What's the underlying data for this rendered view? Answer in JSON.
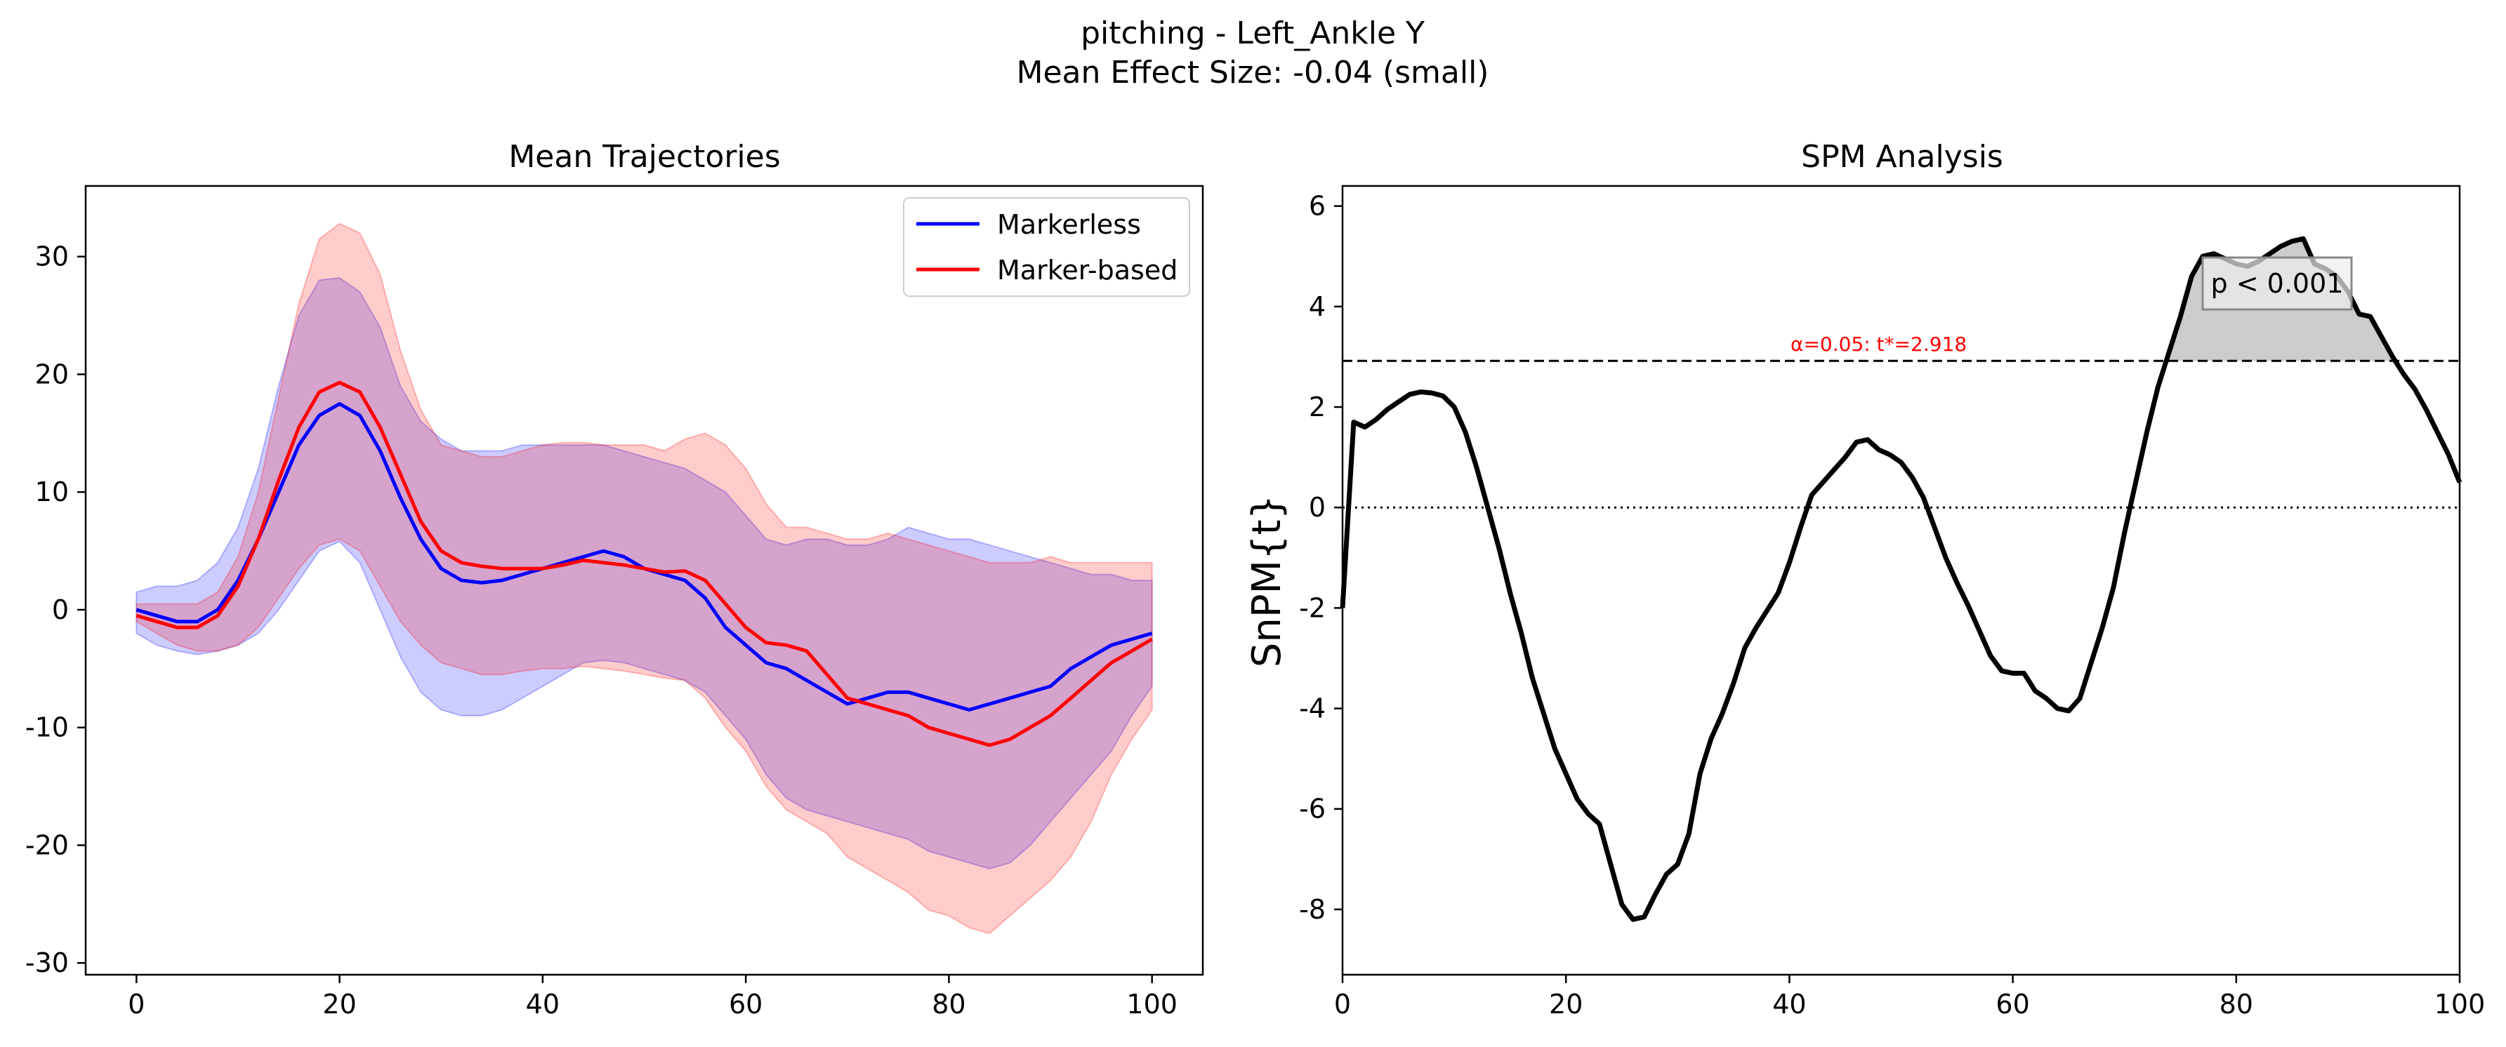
{
  "figure": {
    "title_line1": "pitching - Left_Ankle Y",
    "title_line2": "Mean Effect Size: -0.04 (small)"
  },
  "chart_data": [
    {
      "type": "line",
      "title": "Mean Trajectories",
      "xlabel": "",
      "ylabel": "",
      "xlim": [
        -5,
        105
      ],
      "ylim": [
        -31,
        36
      ],
      "xticks": [
        0,
        20,
        40,
        60,
        80,
        100
      ],
      "yticks": [
        -30,
        -20,
        -10,
        0,
        10,
        20,
        30
      ],
      "legend_position": "top-right",
      "grid": false,
      "x": [
        0,
        2,
        4,
        6,
        8,
        10,
        12,
        14,
        16,
        18,
        20,
        22,
        24,
        26,
        28,
        30,
        32,
        34,
        36,
        38,
        40,
        42,
        44,
        46,
        48,
        50,
        52,
        54,
        56,
        58,
        60,
        62,
        64,
        66,
        68,
        70,
        72,
        74,
        76,
        78,
        80,
        82,
        84,
        86,
        88,
        90,
        92,
        94,
        96,
        98,
        100
      ],
      "series": [
        {
          "name": "Markerless",
          "color": "#0000ff",
          "band_color": "#0000ff",
          "mean": [
            0,
            -0.5,
            -1,
            -1,
            0,
            2.5,
            6,
            10,
            14,
            16.5,
            17.5,
            16.5,
            13.5,
            9.5,
            6,
            3.5,
            2.5,
            2.3,
            2.5,
            3,
            3.5,
            4,
            4.5,
            5,
            4.5,
            3.5,
            3,
            2.5,
            1,
            -1.5,
            -3,
            -4.5,
            -5,
            -6,
            -7,
            -8,
            -7.5,
            -7,
            -7,
            -7.5,
            -8,
            -8.5,
            -8,
            -7.5,
            -7,
            -6.5,
            -5,
            -4,
            -3,
            -2.5,
            -2
          ],
          "upper": [
            1.5,
            2,
            2,
            2.5,
            4,
            7,
            12,
            19,
            25,
            28,
            28.2,
            27,
            24,
            19,
            16,
            14.5,
            13.5,
            13.5,
            13.5,
            14,
            14,
            14,
            14,
            14,
            13.5,
            13,
            12.5,
            12,
            11,
            10,
            8,
            6,
            5.5,
            6,
            6,
            5.5,
            5.5,
            6,
            7,
            6.5,
            6,
            6,
            5.5,
            5,
            4.5,
            4,
            3.5,
            3,
            3,
            2.5,
            2.5
          ],
          "lower": [
            -2,
            -3,
            -3.5,
            -3.8,
            -3.5,
            -3,
            -2,
            0,
            2.5,
            5,
            5.8,
            4,
            0,
            -4,
            -7,
            -8.5,
            -9,
            -9,
            -8.5,
            -7.5,
            -6.5,
            -5.5,
            -4.5,
            -4.3,
            -4.5,
            -5,
            -5.5,
            -6,
            -7,
            -9,
            -11,
            -14,
            -16,
            -17,
            -17.5,
            -18,
            -18.5,
            -19,
            -19.5,
            -20.5,
            -21,
            -21.5,
            -22,
            -21.5,
            -20,
            -18,
            -16,
            -14,
            -12,
            -9,
            -6.5
          ]
        },
        {
          "name": "Marker-based",
          "color": "#ff0000",
          "band_color": "#ff0000",
          "mean": [
            -0.5,
            -1,
            -1.5,
            -1.5,
            -0.5,
            2,
            6,
            11,
            15.5,
            18.5,
            19.3,
            18.5,
            15.5,
            11.5,
            7.5,
            5,
            4,
            3.7,
            3.5,
            3.5,
            3.5,
            3.8,
            4.2,
            4,
            3.8,
            3.5,
            3.2,
            3.3,
            2.5,
            0.5,
            -1.5,
            -2.8,
            -3,
            -3.5,
            -5.5,
            -7.5,
            -8,
            -8.5,
            -9,
            -10,
            -10.5,
            -11,
            -11.5,
            -11,
            -10,
            -9,
            -7.5,
            -6,
            -4.5,
            -3.5,
            -2.5
          ],
          "upper": [
            0.5,
            0.5,
            0.5,
            0.5,
            1.5,
            4.5,
            10,
            18,
            26,
            31.5,
            32.8,
            32,
            28.5,
            22,
            17,
            14,
            13.5,
            13,
            13,
            13.5,
            14,
            14.2,
            14.2,
            14,
            14,
            14,
            13.5,
            14.5,
            15,
            14,
            12,
            9,
            7,
            7,
            6.5,
            6,
            6,
            6.5,
            6,
            5.5,
            5,
            4.5,
            4,
            4,
            4,
            4.5,
            4,
            4,
            4,
            4,
            4
          ],
          "lower": [
            -1,
            -2,
            -3,
            -3.5,
            -3.5,
            -3,
            -1.5,
            1,
            3.5,
            5.5,
            6,
            5,
            2,
            -1,
            -3,
            -4.5,
            -5,
            -5.5,
            -5.5,
            -5.2,
            -5,
            -5,
            -4.8,
            -5,
            -5.2,
            -5.5,
            -5.8,
            -6,
            -7.5,
            -10,
            -12,
            -15,
            -17,
            -18,
            -19,
            -21,
            -22,
            -23,
            -24,
            -25.5,
            -26,
            -27,
            -27.5,
            -26,
            -24.5,
            -23,
            -21,
            -18,
            -14,
            -11,
            -8.5
          ]
        }
      ]
    },
    {
      "type": "line",
      "title": "SPM Analysis",
      "xlabel": "",
      "ylabel": "SnPM{t}",
      "xlim": [
        0,
        100
      ],
      "ylim": [
        -9.3,
        6.4
      ],
      "xticks": [
        0,
        20,
        40,
        60,
        80,
        100
      ],
      "yticks": [
        -8,
        -6,
        -4,
        -2,
        0,
        2,
        4,
        6
      ],
      "threshold": 2.918,
      "threshold_label": "α=0.05:  t*=2.918",
      "threshold_color": "#ff0000",
      "cluster_label": "p < 0.001",
      "grid": false,
      "x": [
        0,
        1,
        2,
        3,
        4,
        5,
        6,
        7,
        8,
        9,
        10,
        11,
        12,
        13,
        14,
        15,
        16,
        17,
        18,
        19,
        20,
        21,
        22,
        23,
        24,
        25,
        26,
        27,
        28,
        29,
        30,
        31,
        32,
        33,
        34,
        35,
        36,
        37,
        38,
        39,
        40,
        41,
        42,
        43,
        44,
        45,
        46,
        47,
        48,
        49,
        50,
        51,
        52,
        53,
        54,
        55,
        56,
        57,
        58,
        59,
        60,
        61,
        62,
        63,
        64,
        65,
        66,
        67,
        68,
        69,
        70,
        71,
        72,
        73,
        74,
        75,
        76,
        77,
        78,
        79,
        80,
        81,
        82,
        83,
        84,
        85,
        86,
        87,
        88,
        89,
        90,
        91,
        92,
        93,
        94,
        95,
        96,
        97,
        98,
        99,
        100
      ],
      "values": [
        -2,
        1.7,
        1.6,
        1.75,
        1.95,
        2.1,
        2.25,
        2.3,
        2.28,
        2.22,
        2,
        1.5,
        0.8,
        0,
        -0.8,
        -1.7,
        -2.5,
        -3.4,
        -4.1,
        -4.8,
        -5.3,
        -5.8,
        -6.1,
        -6.3,
        -7.1,
        -7.9,
        -8.2,
        -8.15,
        -7.7,
        -7.3,
        -7.1,
        -6.5,
        -5.3,
        -4.6,
        -4.1,
        -3.5,
        -2.8,
        -2.4,
        -2.05,
        -1.7,
        -1.1,
        -0.4,
        0.25,
        0.5,
        0.75,
        1,
        1.3,
        1.35,
        1.15,
        1.05,
        0.9,
        0.6,
        0.2,
        -0.4,
        -1,
        -1.5,
        -1.95,
        -2.45,
        -2.95,
        -3.25,
        -3.3,
        -3.3,
        -3.65,
        -3.8,
        -4,
        -4.05,
        -3.8,
        -3.1,
        -2.4,
        -1.6,
        -0.5,
        0.5,
        1.5,
        2.4,
        3.1,
        3.8,
        4.6,
        5,
        5.05,
        4.95,
        4.85,
        4.8,
        4.9,
        5.05,
        5.2,
        5.3,
        5.35,
        4.85,
        4.75,
        4.6,
        4.3,
        3.85,
        3.8,
        3.4,
        3,
        2.65,
        2.35,
        1.95,
        1.5,
        1.05,
        0.5
      ]
    }
  ]
}
